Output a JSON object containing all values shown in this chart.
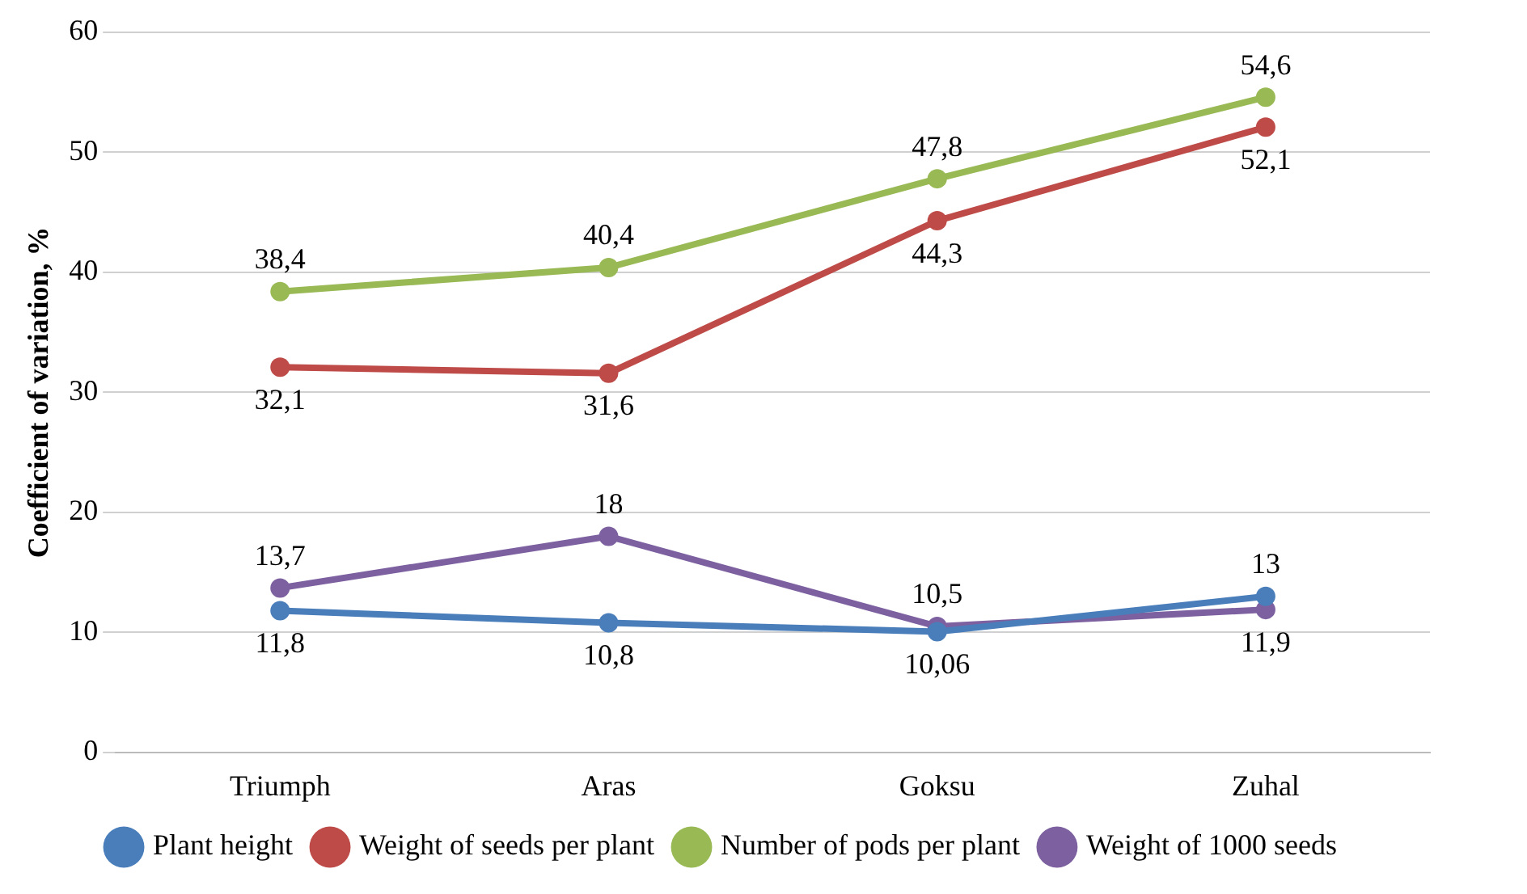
{
  "chart_data": {
    "type": "line",
    "ylabel": "Coefficient of variation, %",
    "categories": [
      "Triumph",
      "Aras",
      "Goksu",
      "Zuhal"
    ],
    "series": [
      {
        "name": "Plant height",
        "color": "#4a7ebb",
        "values": [
          11.8,
          10.8,
          10.06,
          13
        ],
        "value_labels": [
          "11,8",
          "10,8",
          "10,06",
          "13"
        ]
      },
      {
        "name": "Weight of seeds per plant",
        "color": "#be4b48",
        "values": [
          32.1,
          31.6,
          44.3,
          52.1
        ],
        "value_labels": [
          "32,1",
          "31,6",
          "44,3",
          "52,1"
        ]
      },
      {
        "name": "Number of pods per plant",
        "color": "#98b954",
        "values": [
          38.4,
          40.4,
          47.8,
          54.6
        ],
        "value_labels": [
          "38,4",
          "40,4",
          "47,8",
          "54,6"
        ]
      },
      {
        "name": "Weight of 1000 seeds",
        "color": "#7d60a0",
        "values": [
          13.7,
          18,
          10.5,
          11.9
        ],
        "value_labels": [
          "13,7",
          "18",
          "10,5",
          "11,9"
        ]
      }
    ],
    "ylim": [
      0,
      60
    ],
    "yticks": [
      0,
      10,
      20,
      30,
      40,
      50,
      60
    ],
    "grid": "y",
    "legend": "bottom",
    "marker": "circle",
    "line_style": "solid"
  }
}
